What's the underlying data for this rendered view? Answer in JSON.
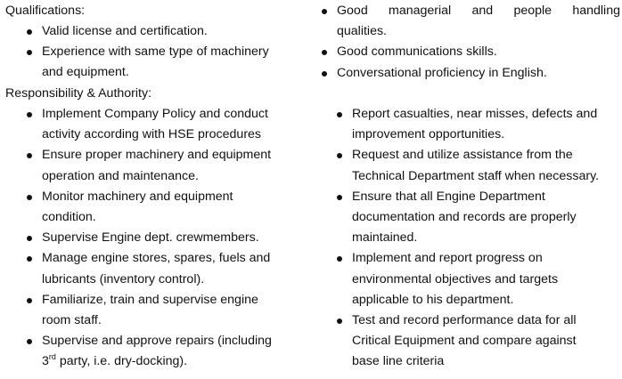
{
  "qualifications": {
    "heading": "Qualifications:",
    "left_items": [
      [
        "Valid license and certification."
      ],
      [
        "Experience with same type of machinery",
        "and equipment."
      ]
    ],
    "right_items": [
      [
        "Good managerial and people handling",
        "qualities."
      ],
      [
        "Good communications skills."
      ],
      [
        "Conversational proficiency in English."
      ]
    ]
  },
  "responsibility": {
    "heading": "Responsibility & Authority:",
    "left_items": [
      [
        "Implement Company Policy and conduct",
        "activity according with HSE procedures"
      ],
      [
        "Ensure proper machinery and equipment",
        "operation and maintenance."
      ],
      [
        "Monitor machinery and equipment",
        "condition."
      ],
      [
        "Supervise Engine dept. crewmembers."
      ],
      [
        "Manage engine stores, spares, fuels and",
        "lubricants (inventory control)."
      ],
      [
        "Familiarize, train and supervise engine",
        "room staff."
      ],
      [
        "Supervise and approve repairs (including",
        "3",
        "rd",
        " party, i.e. dry-docking)."
      ]
    ],
    "right_items": [
      [
        "Report casualties, near misses, defects and",
        "improvement opportunities."
      ],
      [
        "Request and utilize assistance from the",
        "Technical Department staff when necessary."
      ],
      [
        "Ensure that all Engine Department",
        "documentation and records are properly",
        "maintained."
      ],
      [
        "Implement and report progress on",
        "environmental objectives and targets",
        "applicable to his department."
      ],
      [
        "Test and record performance data for all",
        "Critical Equipment and compare against",
        "base line criteria"
      ]
    ]
  }
}
